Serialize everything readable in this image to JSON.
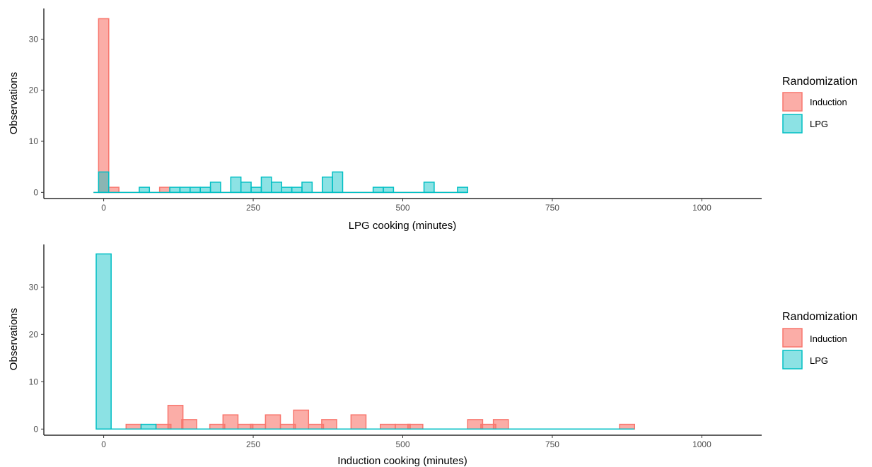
{
  "legend": {
    "title": "Randomization",
    "groups": [
      {
        "name": "Induction",
        "fill": "#F8766D",
        "fill_opacity": 0.6,
        "stroke": "#F8766D"
      },
      {
        "name": "LPG",
        "fill": "#00BFC4",
        "fill_opacity": 0.45,
        "stroke": "#00BFC4"
      }
    ]
  },
  "chart_data": [
    {
      "type": "histogram",
      "xlabel": "LPG cooking (minutes)",
      "ylabel": "Observations",
      "xlim": [
        -100,
        1100
      ],
      "ylim": [
        -1.2,
        36
      ],
      "xticks": [
        0,
        250,
        500,
        750,
        1000
      ],
      "yticks": [
        0,
        10,
        20,
        30
      ],
      "baseline_range": [
        -17,
        608
      ],
      "bin_width": 17,
      "series": [
        {
          "name": "Induction",
          "bins": [
            {
              "x": 0,
              "count": 34
            },
            {
              "x": 17,
              "count": 1
            },
            {
              "x": 102,
              "count": 1
            }
          ]
        },
        {
          "name": "LPG",
          "bins": [
            {
              "x": 0,
              "count": 4
            },
            {
              "x": 68,
              "count": 1
            },
            {
              "x": 119,
              "count": 1
            },
            {
              "x": 136,
              "count": 1
            },
            {
              "x": 153,
              "count": 1
            },
            {
              "x": 170,
              "count": 1
            },
            {
              "x": 187,
              "count": 2
            },
            {
              "x": 221,
              "count": 3
            },
            {
              "x": 238,
              "count": 2
            },
            {
              "x": 255,
              "count": 1
            },
            {
              "x": 272,
              "count": 3
            },
            {
              "x": 289,
              "count": 2
            },
            {
              "x": 306,
              "count": 1
            },
            {
              "x": 323,
              "count": 1
            },
            {
              "x": 340,
              "count": 2
            },
            {
              "x": 374,
              "count": 3
            },
            {
              "x": 391,
              "count": 4
            },
            {
              "x": 459,
              "count": 1
            },
            {
              "x": 476,
              "count": 1
            },
            {
              "x": 544,
              "count": 2
            },
            {
              "x": 600,
              "count": 1
            }
          ]
        }
      ]
    },
    {
      "type": "histogram",
      "xlabel": "Induction cooking (minutes)",
      "ylabel": "Observations",
      "xlim": [
        -100,
        1100
      ],
      "ylim": [
        -1.3,
        39
      ],
      "xticks": [
        0,
        250,
        500,
        750,
        1000
      ],
      "yticks": [
        0,
        10,
        20,
        30
      ],
      "baseline_range": [
        -12,
        887
      ],
      "bin_width": 25,
      "series": [
        {
          "name": "Induction",
          "bins": [
            {
              "x": 50,
              "count": 1
            },
            {
              "x": 100,
              "count": 1
            },
            {
              "x": 120,
              "count": 5
            },
            {
              "x": 143,
              "count": 2
            },
            {
              "x": 190,
              "count": 1
            },
            {
              "x": 212,
              "count": 3
            },
            {
              "x": 237,
              "count": 1
            },
            {
              "x": 258,
              "count": 1
            },
            {
              "x": 283,
              "count": 3
            },
            {
              "x": 308,
              "count": 1
            },
            {
              "x": 330,
              "count": 4
            },
            {
              "x": 355,
              "count": 1
            },
            {
              "x": 377,
              "count": 2
            },
            {
              "x": 426,
              "count": 3
            },
            {
              "x": 475,
              "count": 1
            },
            {
              "x": 500,
              "count": 1
            },
            {
              "x": 521,
              "count": 1
            },
            {
              "x": 621,
              "count": 2
            },
            {
              "x": 643,
              "count": 1
            },
            {
              "x": 664,
              "count": 2
            },
            {
              "x": 875,
              "count": 1
            }
          ]
        },
        {
          "name": "LPG",
          "bins": [
            {
              "x": 0,
              "count": 37
            },
            {
              "x": 75,
              "count": 1
            }
          ]
        }
      ]
    }
  ]
}
